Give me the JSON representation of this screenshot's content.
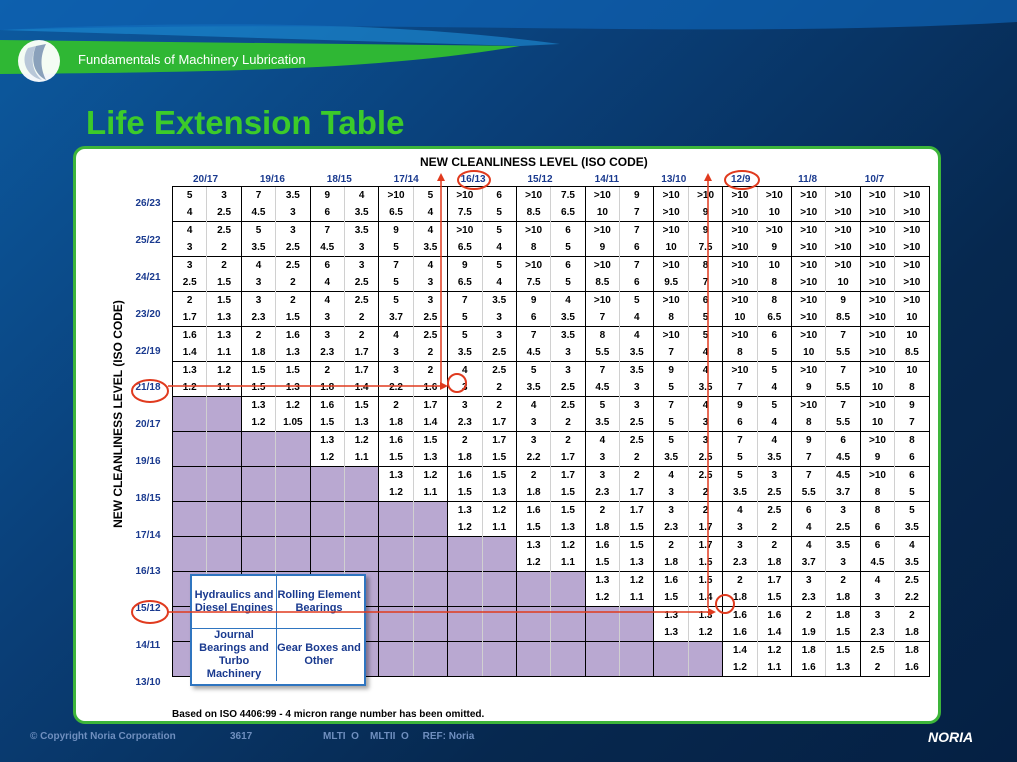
{
  "header": {
    "subtitle": "Fundamentals of Machinery Lubrication",
    "title": "Life Extension Table"
  },
  "table": {
    "top_title": "NEW CLEANLINESS LEVEL (ISO CODE)",
    "side_title": "NEW CLEANLINESS LEVEL (ISO CODE)",
    "columns": [
      "20/17",
      "19/16",
      "18/15",
      "17/14",
      "16/13",
      "15/12",
      "14/11",
      "13/10",
      "12/9",
      "11/8",
      "10/7"
    ],
    "rows": [
      "26/23",
      "25/22",
      "24/21",
      "23/20",
      "22/19",
      "21/18",
      "20/17",
      "19/16",
      "18/15",
      "17/14",
      "16/13",
      "15/12",
      "14/11",
      "13/10"
    ],
    "highlight_columns": [
      "16/13",
      "12/9"
    ],
    "highlight_rows": [
      "21/18",
      "15/12"
    ],
    "highlight_cells": [
      "4",
      "2"
    ],
    "cells": [
      [
        [
          "5",
          "3",
          "7",
          "3.5",
          "9",
          "4",
          ">10",
          "5",
          ">10",
          "6",
          ">10",
          "7.5",
          ">10",
          "9",
          ">10",
          ">10",
          ">10",
          ">10",
          ">10",
          ">10",
          ">10",
          ">10"
        ],
        [
          "4",
          "2.5",
          "4.5",
          "3",
          "6",
          "3.5",
          "6.5",
          "4",
          "7.5",
          "5",
          "8.5",
          "6.5",
          "10",
          "7",
          ">10",
          "9",
          ">10",
          "10",
          ">10",
          ">10",
          ">10",
          ">10"
        ]
      ],
      [
        [
          "4",
          "2.5",
          "5",
          "3",
          "7",
          "3.5",
          "9",
          "4",
          ">10",
          "5",
          ">10",
          "6",
          ">10",
          "7",
          ">10",
          "9",
          ">10",
          ">10",
          ">10",
          ">10",
          ">10",
          ">10"
        ],
        [
          "3",
          "2",
          "3.5",
          "2.5",
          "4.5",
          "3",
          "5",
          "3.5",
          "6.5",
          "4",
          "8",
          "5",
          "9",
          "6",
          "10",
          "7.5",
          ">10",
          "9",
          ">10",
          ">10",
          ">10",
          ">10"
        ]
      ],
      [
        [
          "3",
          "2",
          "4",
          "2.5",
          "6",
          "3",
          "7",
          "4",
          "9",
          "5",
          ">10",
          "6",
          ">10",
          "7",
          ">10",
          "8",
          ">10",
          "10",
          ">10",
          ">10",
          ">10",
          ">10"
        ],
        [
          "2.5",
          "1.5",
          "3",
          "2",
          "4",
          "2.5",
          "5",
          "3",
          "6.5",
          "4",
          "7.5",
          "5",
          "8.5",
          "6",
          "9.5",
          "7",
          ">10",
          "8",
          ">10",
          "10",
          ">10",
          ">10"
        ]
      ],
      [
        [
          "2",
          "1.5",
          "3",
          "2",
          "4",
          "2.5",
          "5",
          "3",
          "7",
          "3.5",
          "9",
          "4",
          ">10",
          "5",
          ">10",
          "6",
          ">10",
          "8",
          ">10",
          "9",
          ">10",
          ">10"
        ],
        [
          "1.7",
          "1.3",
          "2.3",
          "1.5",
          "3",
          "2",
          "3.7",
          "2.5",
          "5",
          "3",
          "6",
          "3.5",
          "7",
          "4",
          "8",
          "5",
          "10",
          "6.5",
          ">10",
          "8.5",
          ">10",
          "10"
        ]
      ],
      [
        [
          "1.6",
          "1.3",
          "2",
          "1.6",
          "3",
          "2",
          "4",
          "2.5",
          "5",
          "3",
          "7",
          "3.5",
          "8",
          "4",
          ">10",
          "5",
          ">10",
          "6",
          ">10",
          "7",
          ">10",
          "10"
        ],
        [
          "1.4",
          "1.1",
          "1.8",
          "1.3",
          "2.3",
          "1.7",
          "3",
          "2",
          "3.5",
          "2.5",
          "4.5",
          "3",
          "5.5",
          "3.5",
          "7",
          "4",
          "8",
          "5",
          "10",
          "5.5",
          ">10",
          "8.5"
        ]
      ],
      [
        [
          "1.3",
          "1.2",
          "1.5",
          "1.5",
          "2",
          "1.7",
          "3",
          "2",
          "4",
          "2.5",
          "5",
          "3",
          "7",
          "3.5",
          "9",
          "4",
          ">10",
          "5",
          ">10",
          "7",
          ">10",
          "10"
        ],
        [
          "1.2",
          "1.1",
          "1.5",
          "1.3",
          "1.8",
          "1.4",
          "2.2",
          "1.6",
          "3",
          "2",
          "3.5",
          "2.5",
          "4.5",
          "3",
          "5",
          "3.5",
          "7",
          "4",
          "9",
          "5.5",
          "10",
          "8"
        ]
      ],
      [
        [
          "",
          "",
          "1.3",
          "1.2",
          "1.6",
          "1.5",
          "2",
          "1.7",
          "3",
          "2",
          "4",
          "2.5",
          "5",
          "3",
          "7",
          "4",
          "9",
          "5",
          ">10",
          "7",
          ">10",
          "9"
        ],
        [
          "",
          "",
          "1.2",
          "1.05",
          "1.5",
          "1.3",
          "1.8",
          "1.4",
          "2.3",
          "1.7",
          "3",
          "2",
          "3.5",
          "2.5",
          "5",
          "3",
          "6",
          "4",
          "8",
          "5.5",
          "10",
          "7"
        ]
      ],
      [
        [
          "",
          "",
          "",
          "",
          "1.3",
          "1.2",
          "1.6",
          "1.5",
          "2",
          "1.7",
          "3",
          "2",
          "4",
          "2.5",
          "5",
          "3",
          "7",
          "4",
          "9",
          "6",
          ">10",
          "8"
        ],
        [
          "",
          "",
          "",
          "",
          "1.2",
          "1.1",
          "1.5",
          "1.3",
          "1.8",
          "1.5",
          "2.2",
          "1.7",
          "3",
          "2",
          "3.5",
          "2.5",
          "5",
          "3.5",
          "7",
          "4.5",
          "9",
          "6"
        ]
      ],
      [
        [
          "",
          "",
          "",
          "",
          "",
          "",
          "1.3",
          "1.2",
          "1.6",
          "1.5",
          "2",
          "1.7",
          "3",
          "2",
          "4",
          "2.5",
          "5",
          "3",
          "7",
          "4.5",
          ">10",
          "6"
        ],
        [
          "",
          "",
          "",
          "",
          "",
          "",
          "1.2",
          "1.1",
          "1.5",
          "1.3",
          "1.8",
          "1.5",
          "2.3",
          "1.7",
          "3",
          "2",
          "3.5",
          "2.5",
          "5.5",
          "3.7",
          "8",
          "5"
        ]
      ],
      [
        [
          "",
          "",
          "",
          "",
          "",
          "",
          "",
          "",
          "1.3",
          "1.2",
          "1.6",
          "1.5",
          "2",
          "1.7",
          "3",
          "2",
          "4",
          "2.5",
          "6",
          "3",
          "8",
          "5"
        ],
        [
          "",
          "",
          "",
          "",
          "",
          "",
          "",
          "",
          "1.2",
          "1.1",
          "1.5",
          "1.3",
          "1.8",
          "1.5",
          "2.3",
          "1.7",
          "3",
          "2",
          "4",
          "2.5",
          "6",
          "3.5"
        ]
      ],
      [
        [
          "",
          "",
          "",
          "",
          "",
          "",
          "",
          "",
          "",
          "",
          "1.3",
          "1.2",
          "1.6",
          "1.5",
          "2",
          "1.7",
          "3",
          "2",
          "4",
          "3.5",
          "6",
          "4"
        ],
        [
          "",
          "",
          "",
          "",
          "",
          "",
          "",
          "",
          "",
          "",
          "1.2",
          "1.1",
          "1.5",
          "1.3",
          "1.8",
          "1.5",
          "2.3",
          "1.8",
          "3.7",
          "3",
          "4.5",
          "3.5"
        ]
      ],
      [
        [
          "",
          "",
          "",
          "",
          "",
          "",
          "",
          "",
          "",
          "",
          "",
          "",
          "1.3",
          "1.2",
          "1.6",
          "1.5",
          "2",
          "1.7",
          "3",
          "2",
          "4",
          "2.5"
        ],
        [
          "",
          "",
          "",
          "",
          "",
          "",
          "",
          "",
          "",
          "",
          "",
          "",
          "1.2",
          "1.1",
          "1.5",
          "1.4",
          "1.8",
          "1.5",
          "2.3",
          "1.8",
          "3",
          "2.2"
        ]
      ],
      [
        [
          "",
          "",
          "",
          "",
          "",
          "",
          "",
          "",
          "",
          "",
          "",
          "",
          "",
          "",
          "1.3",
          "1.3",
          "1.6",
          "1.6",
          "2",
          "1.8",
          "3",
          "2"
        ],
        [
          "",
          "",
          "",
          "",
          "",
          "",
          "",
          "",
          "",
          "",
          "",
          "",
          "",
          "",
          "1.3",
          "1.2",
          "1.6",
          "1.4",
          "1.9",
          "1.5",
          "2.3",
          "1.8"
        ]
      ],
      [
        [
          "",
          "",
          "",
          "",
          "",
          "",
          "",
          "",
          "",
          "",
          "",
          "",
          "",
          "",
          "",
          "",
          "1.4",
          "1.2",
          "1.8",
          "1.5",
          "2.5",
          "1.8"
        ],
        [
          "",
          "",
          "",
          "",
          "",
          "",
          "",
          "",
          "",
          "",
          "",
          "",
          "",
          "",
          "",
          "",
          "1.2",
          "1.1",
          "1.6",
          "1.3",
          "2",
          "1.6"
        ]
      ]
    ],
    "legend": [
      "Hydraulics and Diesel Engines",
      "Rolling Element Bearings",
      "Journal Bearings and Turbo Machinery",
      "Gear Boxes and Other"
    ],
    "footnote": "Based on ISO 4406:99 - 4 micron range number has been omitted."
  },
  "footer": {
    "copyright": "© Copyright Noria Corporation",
    "code": "3617",
    "tags": "MLTI  O    MLTII  O     REF: Noria",
    "brand": "NORIA"
  },
  "colors": {
    "accent_green": "#3ccb2a",
    "header_blue": "#1a3a8f",
    "shade_purple": "#b9a8d1",
    "highlight_red": "#e03a1e"
  }
}
